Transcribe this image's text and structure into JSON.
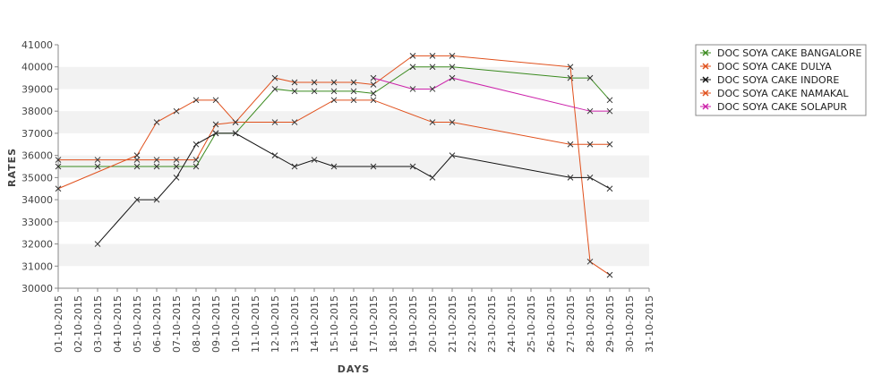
{
  "chart_data": {
    "type": "line",
    "title": "",
    "xlabel": "DAYS",
    "ylabel": "RATES",
    "ylim": [
      30000,
      41000
    ],
    "yticks": [
      30000,
      31000,
      32000,
      33000,
      34000,
      35000,
      36000,
      37000,
      38000,
      39000,
      40000,
      41000
    ],
    "categories": [
      "01-10-2015",
      "02-10-2015",
      "03-10-2015",
      "04-10-2015",
      "05-10-2015",
      "06-10-2015",
      "07-10-2015",
      "08-10-2015",
      "09-10-2015",
      "10-10-2015",
      "11-10-2015",
      "12-10-2015",
      "13-10-2015",
      "14-10-2015",
      "15-10-2015",
      "16-10-2015",
      "17-10-2015",
      "18-10-2015",
      "19-10-2015",
      "20-10-2015",
      "21-10-2015",
      "22-10-2015",
      "23-10-2015",
      "24-10-2015",
      "25-10-2015",
      "26-10-2015",
      "27-10-2015",
      "28-10-2015",
      "29-10-2015",
      "30-10-2015",
      "31-10-2015"
    ],
    "legend_position": "right",
    "grid": "alternating horizontal bands",
    "series": [
      {
        "name": "DOC SOYA CAKE BANGALORE",
        "color": "#3a8a1e",
        "points": [
          [
            1,
            35500
          ],
          [
            3,
            35500
          ],
          [
            5,
            35500
          ],
          [
            6,
            35500
          ],
          [
            7,
            35500
          ],
          [
            8,
            35500
          ],
          [
            9,
            37000
          ],
          [
            10,
            37000
          ],
          [
            12,
            39000
          ],
          [
            13,
            38900
          ],
          [
            14,
            38900
          ],
          [
            15,
            38900
          ],
          [
            16,
            38900
          ],
          [
            17,
            38800
          ],
          [
            19,
            40000
          ],
          [
            20,
            40000
          ],
          [
            21,
            40000
          ],
          [
            27,
            39500
          ],
          [
            28,
            39500
          ],
          [
            29,
            38500
          ]
        ]
      },
      {
        "name": "DOC SOYA CAKE DULYA",
        "color": "#e0501c",
        "points": [
          [
            1,
            35800
          ],
          [
            3,
            35800
          ],
          [
            5,
            35800
          ],
          [
            6,
            35800
          ],
          [
            7,
            35800
          ],
          [
            8,
            35800
          ],
          [
            9,
            37400
          ],
          [
            10,
            37500
          ],
          [
            12,
            39500
          ],
          [
            13,
            39300
          ],
          [
            14,
            39300
          ],
          [
            15,
            39300
          ],
          [
            16,
            39300
          ],
          [
            17,
            39200
          ],
          [
            19,
            40500
          ],
          [
            20,
            40500
          ],
          [
            21,
            40500
          ],
          [
            27,
            40000
          ],
          [
            28,
            31200
          ],
          [
            29,
            30600
          ]
        ]
      },
      {
        "name": "DOC SOYA CAKE INDORE",
        "color": "#111111",
        "points": [
          [
            3,
            32000
          ],
          [
            5,
            34000
          ],
          [
            6,
            34000
          ],
          [
            7,
            35000
          ],
          [
            8,
            36500
          ],
          [
            9,
            37000
          ],
          [
            10,
            37000
          ],
          [
            12,
            36000
          ],
          [
            13,
            35500
          ],
          [
            14,
            35800
          ],
          [
            15,
            35500
          ],
          [
            17,
            35500
          ],
          [
            19,
            35500
          ],
          [
            20,
            35000
          ],
          [
            21,
            36000
          ],
          [
            27,
            35000
          ],
          [
            28,
            35000
          ],
          [
            29,
            34500
          ]
        ]
      },
      {
        "name": "DOC SOYA CAKE NAMAKAL",
        "color": "#e0501c",
        "points": [
          [
            1,
            34500
          ],
          [
            5,
            36000
          ],
          [
            6,
            37500
          ],
          [
            7,
            38000
          ],
          [
            8,
            38500
          ],
          [
            9,
            38500
          ],
          [
            10,
            37500
          ],
          [
            12,
            37500
          ],
          [
            13,
            37500
          ],
          [
            15,
            38500
          ],
          [
            16,
            38500
          ],
          [
            17,
            38500
          ],
          [
            20,
            37500
          ],
          [
            21,
            37500
          ],
          [
            27,
            36500
          ],
          [
            28,
            36500
          ],
          [
            29,
            36500
          ]
        ]
      },
      {
        "name": "DOC SOYA CAKE SOLAPUR",
        "color": "#cc22aa",
        "points": [
          [
            17,
            39500
          ],
          [
            19,
            39000
          ],
          [
            20,
            39000
          ],
          [
            21,
            39500
          ],
          [
            28,
            38000
          ],
          [
            29,
            38000
          ]
        ]
      }
    ]
  }
}
